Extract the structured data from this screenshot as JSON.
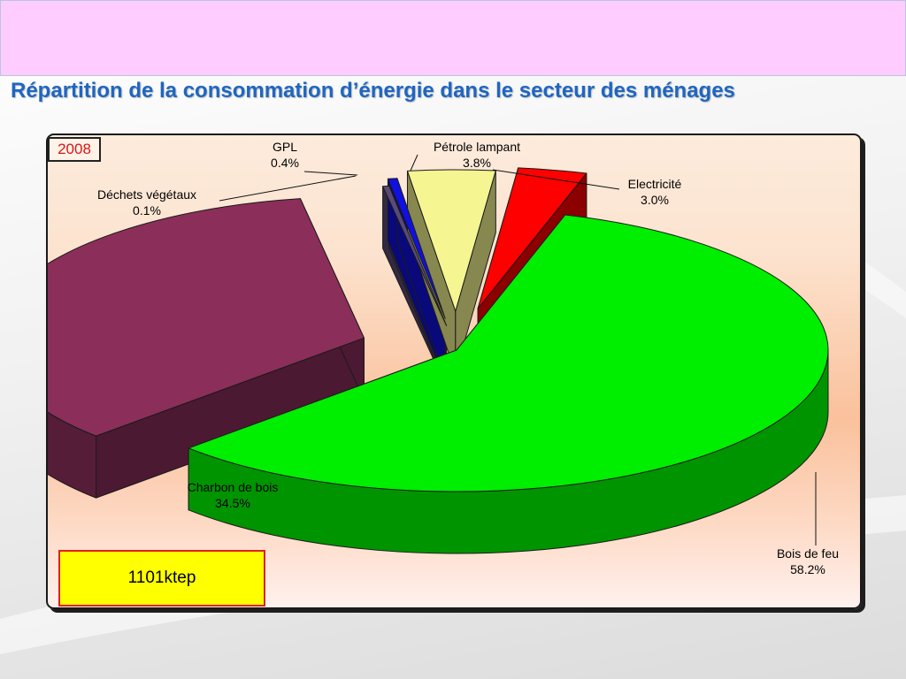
{
  "slide": {
    "title": "Répartition de la consommation d’énergie dans le secteur des ménages"
  },
  "badge": {
    "year": "2008"
  },
  "summary": {
    "total": "1101ktep"
  },
  "chart_data": {
    "type": "pie",
    "title": "",
    "exploded": true,
    "three_d": true,
    "slices": [
      {
        "name": "Bois de feu",
        "value": 58.2,
        "label": "58.2%",
        "color": "#00ee00"
      },
      {
        "name": "Charbon de bois",
        "value": 34.5,
        "label": "34.5%",
        "color": "#8b2e5a"
      },
      {
        "name": "Déchets végétaux",
        "value": 0.1,
        "label": "0.1%",
        "color": "#5a4a7a"
      },
      {
        "name": "GPL",
        "value": 0.4,
        "label": "0.4%",
        "color": "#1010e0"
      },
      {
        "name": "Pétrole lampant",
        "value": 3.8,
        "label": "3.8%",
        "color": "#f5f592"
      },
      {
        "name": "Electricité",
        "value": 3.0,
        "label": "3.0%",
        "color": "#ff0000"
      }
    ]
  }
}
